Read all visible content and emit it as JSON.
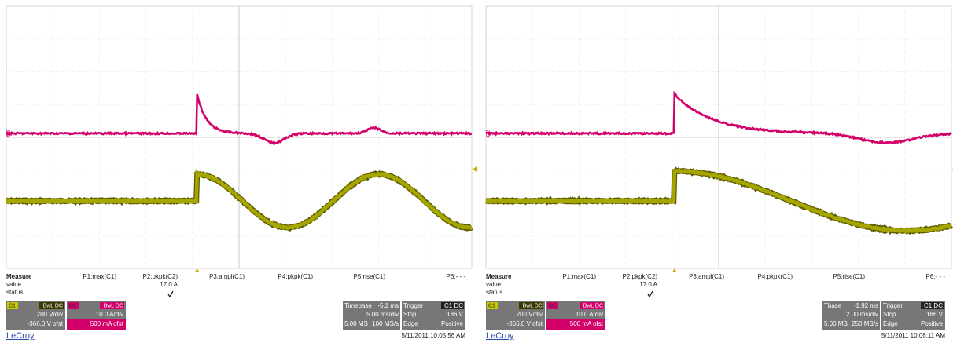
{
  "panels": [
    {
      "channel_labels": [
        "C2",
        "C1"
      ],
      "measure": {
        "title": "Measure",
        "rows": [
          "value",
          "status"
        ],
        "params": [
          {
            "label": "P1:max(C1)"
          },
          {
            "label": "P2:pkpk(C2)",
            "value": "17.0 A"
          },
          {
            "label": "P3:ampl(C1)"
          },
          {
            "label": "P4:pkpk(C1)"
          },
          {
            "label": "P5:rise(C1)"
          },
          {
            "label": "P6:- - -"
          }
        ]
      },
      "channels": [
        {
          "name": "C1",
          "coupling": "BwL DC",
          "scale": "200 V/div",
          "offset": "-366.0 V ofst"
        },
        {
          "name": "C2",
          "coupling": "BwL DC",
          "scale": "10.0 A/div",
          "offset": "500 mA ofst"
        }
      ],
      "timebase": {
        "label": "Timebase",
        "delay": "-5.1 ms",
        "scale": "5.00 ms/div",
        "samples": "5.00 MS",
        "rate": "100 MS/s"
      },
      "trigger": {
        "label": "Trigger",
        "source": "C1 DC",
        "mode": "Stop",
        "level": "186 V",
        "type": "Edge",
        "slope": "Positive"
      },
      "brand": "LeCroy",
      "timestamp": "5/11/2011 10:05:56 AM"
    },
    {
      "channel_labels": [
        "C2",
        "C1"
      ],
      "measure": {
        "title": "Measure",
        "rows": [
          "value",
          "status"
        ],
        "params": [
          {
            "label": "P1:max(C1)"
          },
          {
            "label": "P2:pkpk(C2)",
            "value": "17.0 A"
          },
          {
            "label": "P3:ampl(C1)"
          },
          {
            "label": "P4:pkpk(C1)"
          },
          {
            "label": "P5:rise(C1)"
          },
          {
            "label": "P6:- - -"
          }
        ]
      },
      "channels": [
        {
          "name": "C1",
          "coupling": "BwL DC",
          "scale": "200 V/div",
          "offset": "-366.0 V ofst"
        },
        {
          "name": "C2",
          "coupling": "BwL DC",
          "scale": "10.0 A/div",
          "offset": "500 mA ofst"
        }
      ],
      "timebase": {
        "label": "Tbase",
        "delay": "-1.92 ms",
        "scale": "2.00 ms/div",
        "samples": "5.00 MS",
        "rate": "250 MS/s"
      },
      "trigger": {
        "label": "Trigger",
        "source": "C1 DC",
        "mode": "Stop",
        "level": "186 V",
        "type": "Edge",
        "slope": "Positive"
      },
      "brand": "LeCroy",
      "timestamp": "5/11/2011 10:06:11 AM"
    }
  ]
}
